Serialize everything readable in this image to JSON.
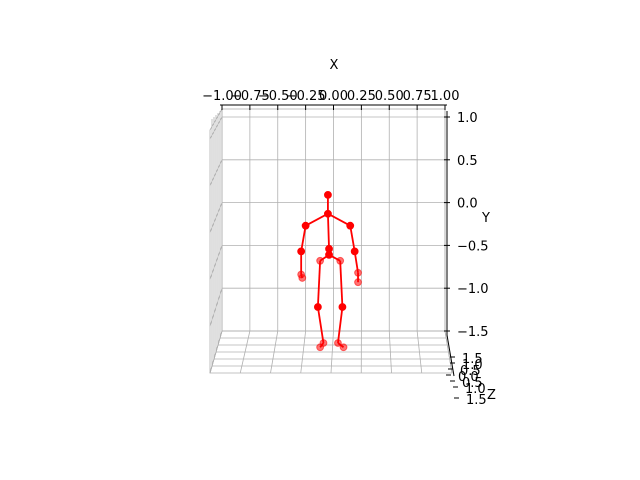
{
  "chart_data": {
    "type": "scatter",
    "projection": "3d",
    "xlabel": "X",
    "ylabel": "Y",
    "zlabel": "Z",
    "x_ticks": [
      "−1.00",
      "−0.75",
      "−0.50",
      "−0.25",
      "0.00",
      "0.25",
      "0.50",
      "0.75",
      "1.00"
    ],
    "y_ticks": [
      "1.0",
      "0.5",
      "0.0",
      "−0.5",
      "−1.0",
      "−1.5"
    ],
    "z_ticks": [
      "1.5",
      "1.0",
      "0.5",
      "0.0",
      "0.5",
      "1.0",
      "1.5"
    ],
    "xlim": [
      -1.0,
      1.0
    ],
    "ylim": [
      -1.5,
      1.0
    ],
    "grid": true,
    "colors": {
      "skeleton": "#ff0000",
      "joints": "#ff0000",
      "grid": "#b0b0b0"
    },
    "joints": [
      {
        "name": "head",
        "x": -0.05,
        "y": 0.09
      },
      {
        "name": "neck",
        "x": -0.05,
        "y": -0.13
      },
      {
        "name": "right_shoulder",
        "x": -0.25,
        "y": -0.27
      },
      {
        "name": "left_shoulder",
        "x": 0.15,
        "y": -0.27
      },
      {
        "name": "right_elbow",
        "x": -0.29,
        "y": -0.57
      },
      {
        "name": "left_elbow",
        "x": 0.19,
        "y": -0.57
      },
      {
        "name": "right_wrist",
        "x": -0.29,
        "y": -0.84
      },
      {
        "name": "left_wrist",
        "x": 0.22,
        "y": -0.82
      },
      {
        "name": "right_hand",
        "x": -0.28,
        "y": -0.88
      },
      {
        "name": "left_hand",
        "x": 0.22,
        "y": -0.93
      },
      {
        "name": "spine",
        "x": -0.04,
        "y": -0.54
      },
      {
        "name": "pelvis",
        "x": -0.04,
        "y": -0.61
      },
      {
        "name": "right_hip",
        "x": -0.12,
        "y": -0.68
      },
      {
        "name": "left_hip",
        "x": 0.06,
        "y": -0.68
      },
      {
        "name": "right_knee",
        "x": -0.14,
        "y": -1.22
      },
      {
        "name": "left_knee",
        "x": 0.08,
        "y": -1.22
      },
      {
        "name": "right_ankle",
        "x": -0.09,
        "y": -1.64
      },
      {
        "name": "left_ankle",
        "x": 0.04,
        "y": -1.64
      },
      {
        "name": "right_foot",
        "x": -0.12,
        "y": -1.69
      },
      {
        "name": "left_foot",
        "x": 0.09,
        "y": -1.69
      }
    ],
    "bones": [
      [
        "head",
        "neck"
      ],
      [
        "neck",
        "right_shoulder"
      ],
      [
        "neck",
        "left_shoulder"
      ],
      [
        "right_shoulder",
        "right_elbow"
      ],
      [
        "right_elbow",
        "right_wrist"
      ],
      [
        "right_wrist",
        "right_hand"
      ],
      [
        "left_shoulder",
        "left_elbow"
      ],
      [
        "left_elbow",
        "left_wrist"
      ],
      [
        "left_wrist",
        "left_hand"
      ],
      [
        "neck",
        "spine"
      ],
      [
        "spine",
        "pelvis"
      ],
      [
        "pelvis",
        "right_hip"
      ],
      [
        "pelvis",
        "left_hip"
      ],
      [
        "right_hip",
        "right_knee"
      ],
      [
        "right_knee",
        "right_ankle"
      ],
      [
        "right_ankle",
        "right_foot"
      ],
      [
        "left_hip",
        "left_knee"
      ],
      [
        "left_knee",
        "left_ankle"
      ],
      [
        "left_ankle",
        "left_foot"
      ]
    ],
    "faded_joints": [
      "right_wrist",
      "left_wrist",
      "right_hand",
      "left_hand",
      "right_ankle",
      "left_ankle",
      "right_foot",
      "left_foot",
      "right_hip",
      "left_hip"
    ]
  }
}
